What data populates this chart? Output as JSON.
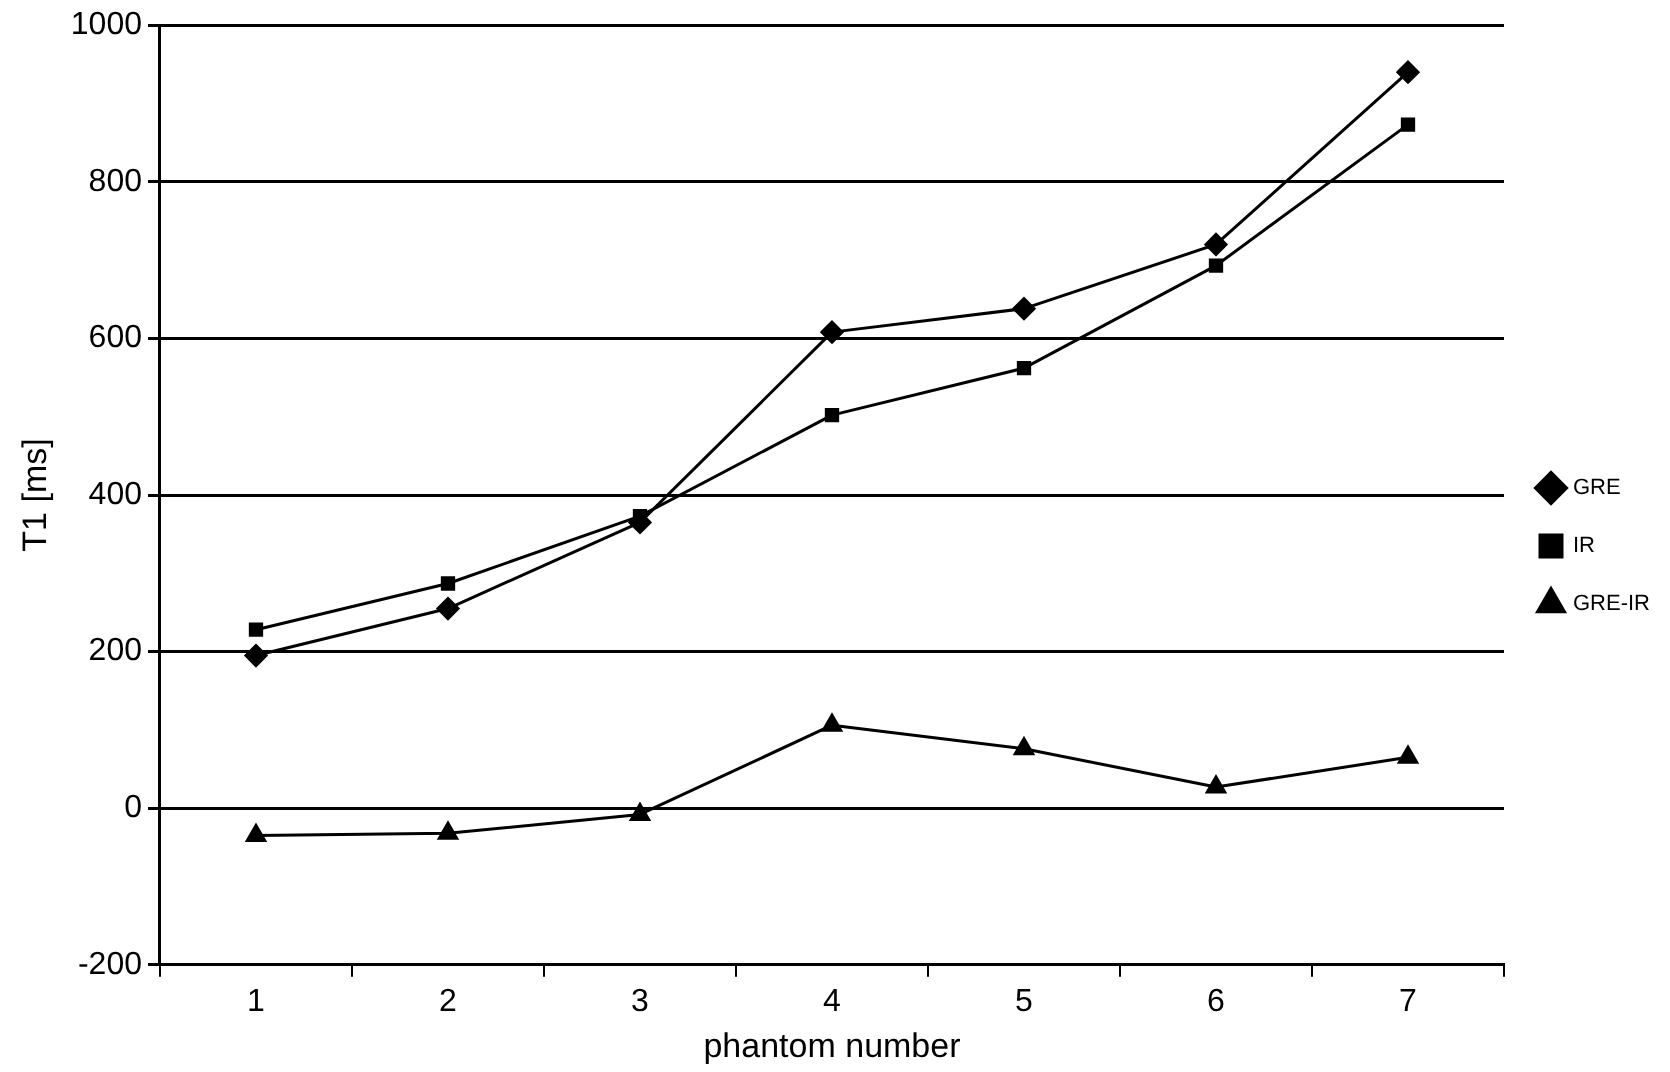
{
  "chart_data": {
    "type": "line",
    "xlabel": "phantom number",
    "ylabel": "T1 [ms]",
    "categories": [
      "1",
      "2",
      "3",
      "4",
      "5",
      "6",
      "7"
    ],
    "series": [
      {
        "name": "GRE",
        "color": "#000000",
        "marker": "diamond",
        "values": [
          195,
          255,
          365,
          608,
          638,
          720,
          940
        ]
      },
      {
        "name": "IR",
        "color": "#000000",
        "marker": "square",
        "values": [
          228,
          287,
          373,
          502,
          562,
          693,
          873
        ]
      },
      {
        "name": "GRE-IR",
        "color": "#000000",
        "marker": "triangle",
        "values": [
          -35,
          -32,
          -8,
          106,
          76,
          27,
          65
        ]
      }
    ],
    "ylim": [
      -200,
      1000
    ],
    "yticks": [
      -200,
      0,
      200,
      400,
      600,
      800,
      1000
    ],
    "grid": "y",
    "legend": "right",
    "line_style": "solid"
  }
}
